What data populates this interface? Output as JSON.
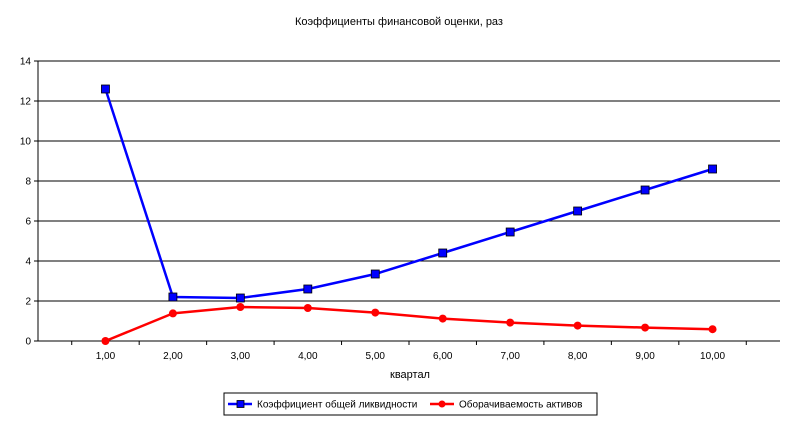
{
  "chart_data": {
    "type": "line",
    "title": "Коэффициенты финансовой оценки, раз",
    "xlabel": "квартал",
    "ylabel": "",
    "x": [
      "1,00",
      "2,00",
      "3,00",
      "4,00",
      "5,00",
      "6,00",
      "7,00",
      "8,00",
      "9,00",
      "10,00"
    ],
    "ylim": [
      0,
      14
    ],
    "yticks": [
      0,
      2,
      4,
      6,
      8,
      10,
      12,
      14
    ],
    "grid": true,
    "legend_position": "bottom",
    "series": [
      {
        "name": "Коэффициент общей ликвидности",
        "color": "#0000ff",
        "marker": "square",
        "values": [
          12.6,
          2.2,
          2.15,
          2.6,
          3.35,
          4.4,
          5.45,
          6.5,
          7.55,
          8.6
        ]
      },
      {
        "name": "Оборачиваемость активов",
        "color": "#ff0000",
        "marker": "circle",
        "values": [
          0.0,
          1.38,
          1.7,
          1.65,
          1.42,
          1.12,
          0.92,
          0.77,
          0.67,
          0.59
        ]
      }
    ]
  }
}
